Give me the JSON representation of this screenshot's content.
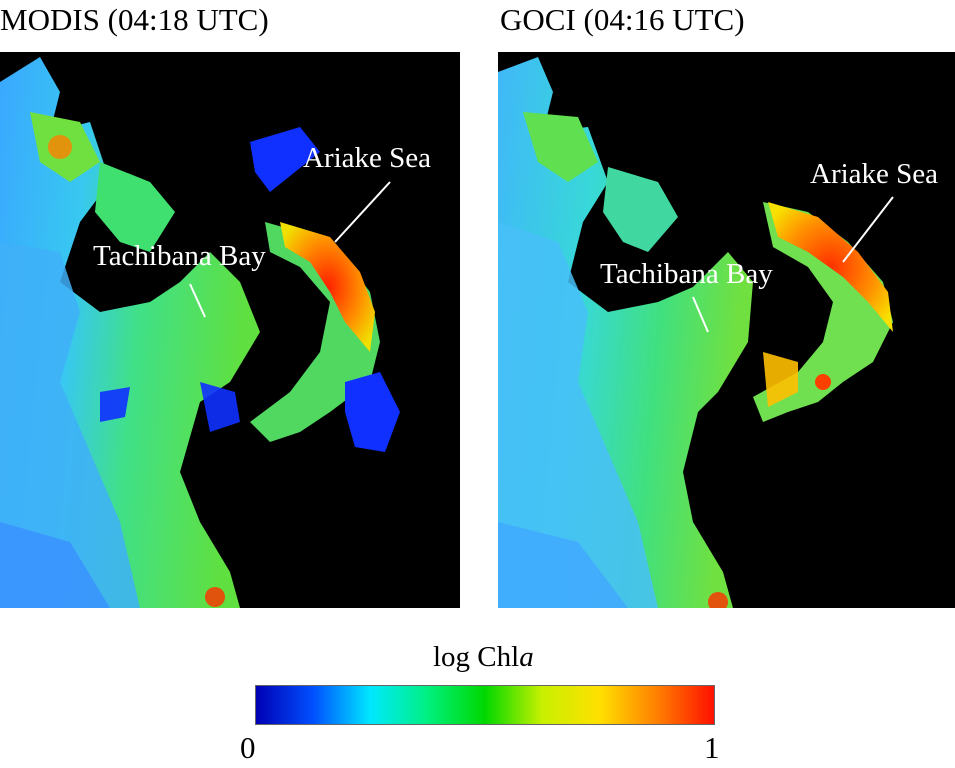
{
  "panels": [
    {
      "title": "MODIS (04:18 UTC)",
      "labels": {
        "bay": "Tachibana Bay",
        "sea": "Ariake Sea"
      }
    },
    {
      "title": "GOCI (04:16 UTC)",
      "labels": {
        "bay": "Tachibana Bay",
        "sea": "Ariake Sea"
      }
    }
  ],
  "colorbar": {
    "title_prefix": "log Chl",
    "title_italic": "a",
    "min_label": "0",
    "max_label": "1",
    "colors": [
      "#0000b4",
      "#0050ff",
      "#00e8ff",
      "#00f080",
      "#00d800",
      "#c8f000",
      "#ffe000",
      "#ff8000",
      "#ff1000"
    ]
  },
  "colors": {
    "land": "#000000",
    "open_sea": "#30b8ff",
    "coastal_water": "#30e080",
    "high_chl": "#ff5010",
    "cloud_flag": "#1030ff"
  }
}
